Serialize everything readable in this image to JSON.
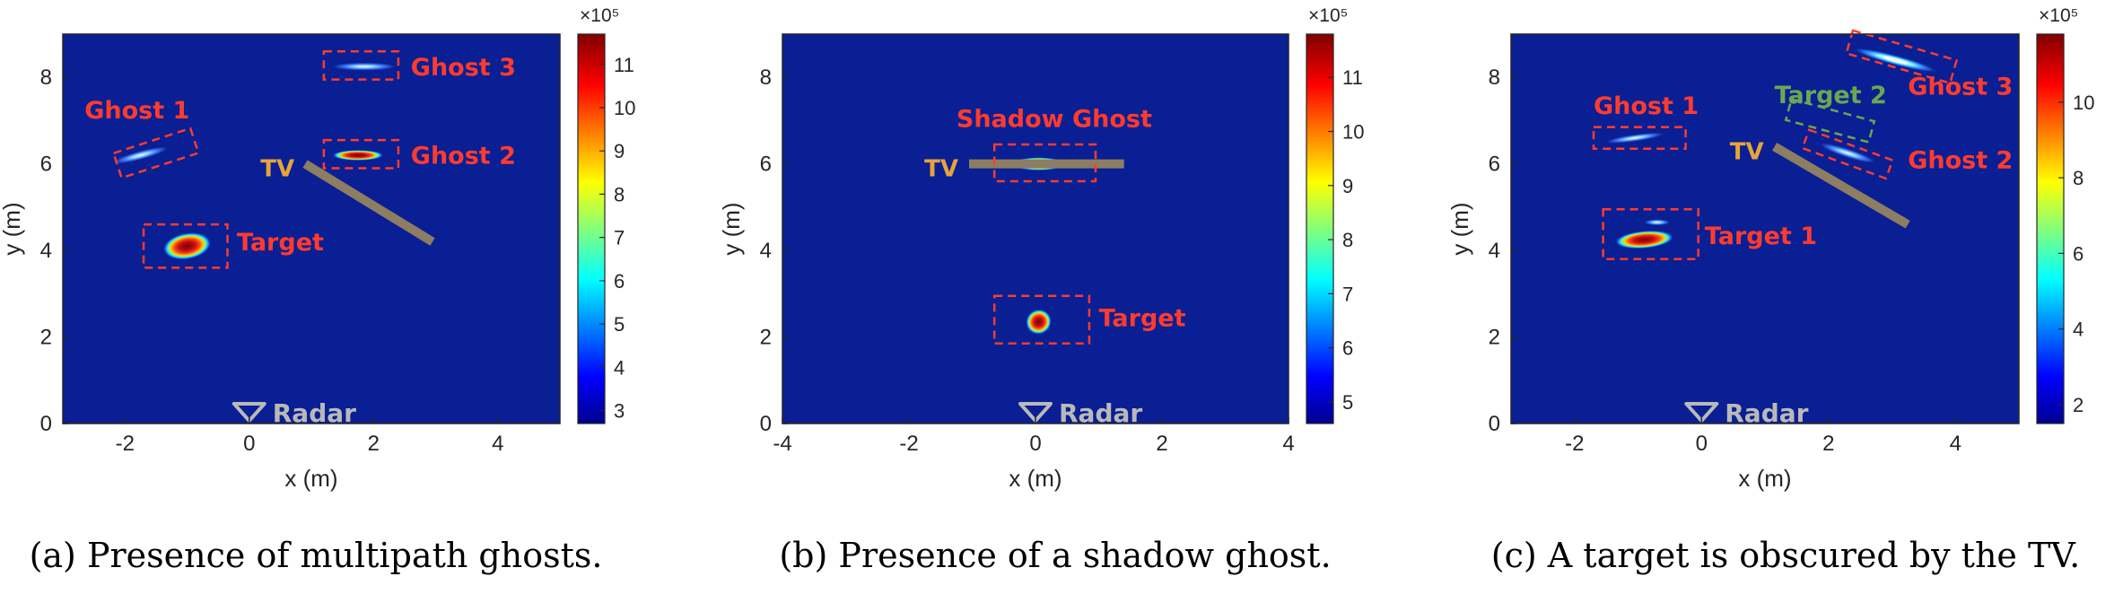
{
  "chart_data": [
    {
      "type": "heatmap",
      "caption": "(a) Presence of multipath ghosts.",
      "xlabel": "x (m)",
      "ylabel": "y (m)",
      "xlim": [
        -3,
        5
      ],
      "ylim": [
        0,
        9
      ],
      "x_ticks": [
        "-2",
        "0",
        "2",
        "4"
      ],
      "y_ticks": [
        "0",
        "2",
        "4",
        "6",
        "8"
      ],
      "colorbar": {
        "multiplier": "×10⁵",
        "range": [
          2.7,
          11.7
        ],
        "ticks": [
          "3",
          "4",
          "5",
          "6",
          "7",
          "8",
          "9",
          "10",
          "11"
        ]
      },
      "wall": {
        "label": "TV",
        "from": [
          0.9,
          6.0
        ],
        "to": [
          2.95,
          4.2
        ]
      },
      "radar": {
        "label": "Radar",
        "x": 0,
        "y": 0.25
      },
      "blobs": [
        {
          "x": -1.0,
          "y": 4.1,
          "rx": 0.38,
          "ry": 0.3,
          "angle": 10,
          "intensity": 1.0
        },
        {
          "x": -1.75,
          "y": 6.2,
          "rx": 0.45,
          "ry": 0.1,
          "angle": 15,
          "intensity": 0.45
        },
        {
          "x": 1.75,
          "y": 6.2,
          "rx": 0.4,
          "ry": 0.12,
          "angle": 0,
          "intensity": 0.9
        },
        {
          "x": 1.85,
          "y": 8.25,
          "rx": 0.5,
          "ry": 0.09,
          "angle": 0,
          "intensity": 0.35
        }
      ],
      "boxes": [
        {
          "label": "Target",
          "x0": -1.7,
          "x1": -0.35,
          "y0": 3.6,
          "y1": 4.6,
          "color": "#ff3b2f",
          "angle": 0,
          "label_x": -0.2,
          "label_y": 4.0
        },
        {
          "label": "Ghost 1",
          "x0": -2.15,
          "x1": -0.85,
          "y0": 5.95,
          "y1": 6.55,
          "color": "#ff3b2f",
          "angle": 18,
          "label_x": -2.65,
          "label_y": 7.05
        },
        {
          "label": "Ghost 2",
          "x0": 1.2,
          "x1": 2.4,
          "y0": 5.9,
          "y1": 6.55,
          "color": "#ff3b2f",
          "angle": 0,
          "label_x": 2.6,
          "label_y": 6.0
        },
        {
          "label": "Ghost 3",
          "x0": 1.2,
          "x1": 2.4,
          "y0": 7.95,
          "y1": 8.6,
          "color": "#ff3b2f",
          "angle": 0,
          "label_x": 2.6,
          "label_y": 8.05
        }
      ]
    },
    {
      "type": "heatmap",
      "caption": "(b) Presence of a shadow ghost.",
      "xlabel": "x (m)",
      "ylabel": "y (m)",
      "xlim": [
        -4,
        4
      ],
      "ylim": [
        0,
        9
      ],
      "x_ticks": [
        "-4",
        "-2",
        "0",
        "2",
        "4"
      ],
      "y_ticks": [
        "0",
        "2",
        "4",
        "6",
        "8"
      ],
      "colorbar": {
        "multiplier": "×10⁵",
        "range": [
          4.6,
          11.8
        ],
        "ticks": [
          "5",
          "6",
          "7",
          "8",
          "9",
          "10",
          "11"
        ]
      },
      "wall": {
        "label": "TV",
        "from": [
          -1.05,
          6.0
        ],
        "to": [
          1.4,
          6.0
        ]
      },
      "radar": {
        "label": "Radar",
        "x": 0,
        "y": 0.25
      },
      "blobs": [
        {
          "x": 0.05,
          "y": 6.0,
          "rx": 0.42,
          "ry": 0.15,
          "angle": 0,
          "intensity": 0.8
        },
        {
          "x": 0.05,
          "y": 2.35,
          "rx": 0.2,
          "ry": 0.28,
          "angle": 35,
          "intensity": 1.0
        }
      ],
      "boxes": [
        {
          "label": "Shadow Ghost",
          "x0": -0.65,
          "x1": 0.95,
          "y0": 5.6,
          "y1": 6.45,
          "color": "#ff3b2f",
          "angle": 0,
          "label_x": -1.25,
          "label_y": 6.85
        },
        {
          "label": "Target",
          "x0": -0.65,
          "x1": 0.85,
          "y0": 1.85,
          "y1": 2.95,
          "color": "#ff3b2f",
          "angle": 0,
          "label_x": 1.0,
          "label_y": 2.25
        }
      ]
    },
    {
      "type": "heatmap",
      "caption": "(c) A target is obscured by the TV.",
      "xlabel": "x (m)",
      "ylabel": "y (m)",
      "xlim": [
        -3,
        5
      ],
      "ylim": [
        0,
        9
      ],
      "x_ticks": [
        "-2",
        "0",
        "2",
        "4"
      ],
      "y_ticks": [
        "0",
        "2",
        "4",
        "6",
        "8"
      ],
      "colorbar": {
        "multiplier": "×10⁵",
        "range": [
          1.5,
          11.8
        ],
        "ticks": [
          "2",
          "4",
          "6",
          "8",
          "10"
        ]
      },
      "wall": {
        "label": "TV",
        "from": [
          1.15,
          6.4
        ],
        "to": [
          3.25,
          4.6
        ]
      },
      "radar": {
        "label": "Radar",
        "x": 0,
        "y": 0.25
      },
      "blobs": [
        {
          "x": -0.9,
          "y": 4.25,
          "rx": 0.45,
          "ry": 0.2,
          "angle": 5,
          "intensity": 1.0
        },
        {
          "x": -0.7,
          "y": 4.65,
          "rx": 0.2,
          "ry": 0.07,
          "angle": 0,
          "intensity": 0.3
        },
        {
          "x": -1.05,
          "y": 6.6,
          "rx": 0.45,
          "ry": 0.08,
          "angle": 8,
          "intensity": 0.35
        },
        {
          "x": 2.3,
          "y": 6.25,
          "rx": 0.45,
          "ry": 0.1,
          "angle": -18,
          "intensity": 0.45
        },
        {
          "x": 3.05,
          "y": 8.4,
          "rx": 0.65,
          "ry": 0.11,
          "angle": -15,
          "intensity": 0.6
        }
      ],
      "boxes": [
        {
          "label": "Target 1",
          "x0": -1.55,
          "x1": -0.05,
          "y0": 3.8,
          "y1": 4.95,
          "color": "#ff3b2f",
          "angle": 0,
          "label_x": 0.05,
          "label_y": 4.15
        },
        {
          "label": "Ghost 1",
          "x0": -1.7,
          "x1": -0.25,
          "y0": 6.35,
          "y1": 6.85,
          "color": "#ff3b2f",
          "angle": 0,
          "label_x": -1.7,
          "label_y": 7.15
        },
        {
          "label": "Target 2",
          "x0": 1.35,
          "x1": 2.7,
          "y0": 6.75,
          "y1": 7.25,
          "color": "#6aa84f",
          "angle": -15,
          "label_x": 1.15,
          "label_y": 7.4
        },
        {
          "label": "Ghost 2",
          "x0": 1.6,
          "x1": 3.0,
          "y0": 6.0,
          "y1": 6.45,
          "color": "#ff3b2f",
          "angle": -20,
          "label_x": 3.25,
          "label_y": 5.9
        },
        {
          "label": "Ghost 3",
          "x0": 2.3,
          "x1": 4.0,
          "y0": 8.2,
          "y1": 8.75,
          "color": "#ff3b2f",
          "angle": -16,
          "label_x": 3.25,
          "label_y": 7.6
        }
      ]
    }
  ]
}
